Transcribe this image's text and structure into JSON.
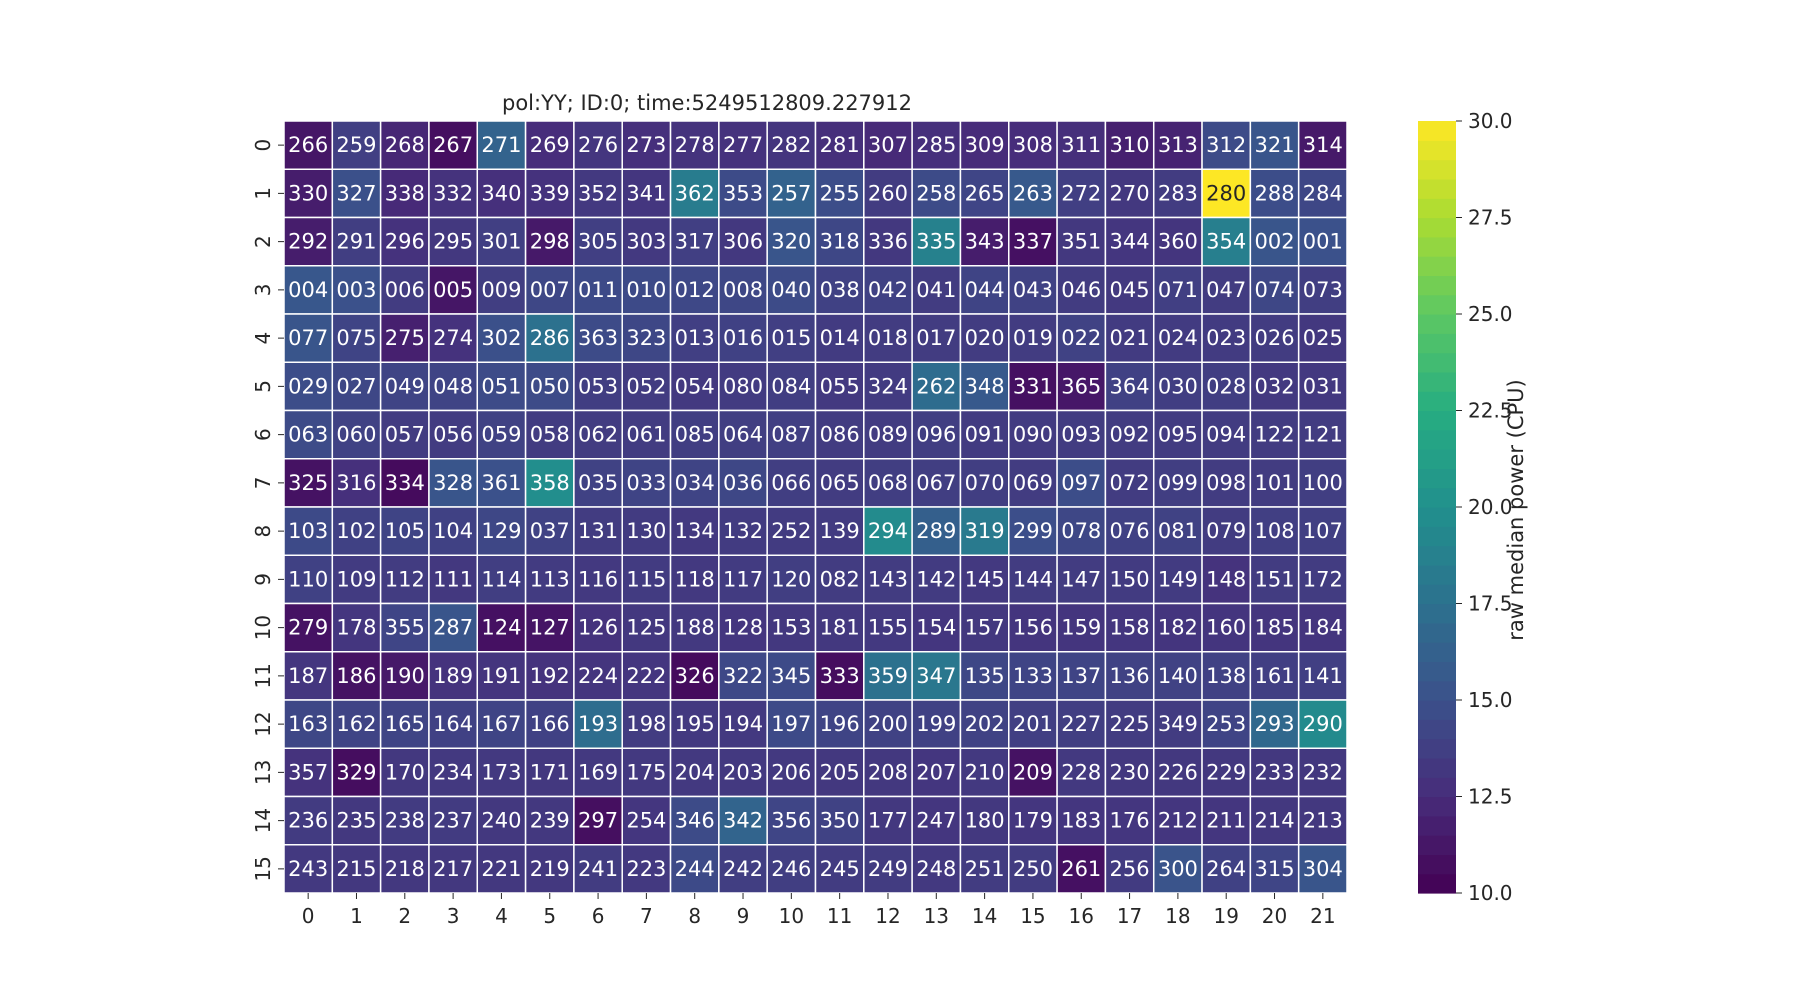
{
  "chart_data": {
    "type": "heatmap",
    "title": "pol:YY; ID:0; time:5249512809.227912",
    "x_tick_labels": [
      "0",
      "1",
      "2",
      "3",
      "4",
      "5",
      "6",
      "7",
      "8",
      "9",
      "10",
      "11",
      "12",
      "13",
      "14",
      "15",
      "16",
      "17",
      "18",
      "19",
      "20",
      "21"
    ],
    "y_tick_labels": [
      "0",
      "1",
      "2",
      "3",
      "4",
      "5",
      "6",
      "7",
      "8",
      "9",
      "10",
      "11",
      "12",
      "13",
      "14",
      "15"
    ],
    "annotations": [
      [
        "266",
        "259",
        "268",
        "267",
        "271",
        "269",
        "276",
        "273",
        "278",
        "277",
        "282",
        "281",
        "307",
        "285",
        "309",
        "308",
        "311",
        "310",
        "313",
        "312",
        "321",
        "314"
      ],
      [
        "330",
        "327",
        "338",
        "332",
        "340",
        "339",
        "352",
        "341",
        "362",
        "353",
        "257",
        "255",
        "260",
        "258",
        "265",
        "263",
        "272",
        "270",
        "283",
        "280",
        "288",
        "284"
      ],
      [
        "292",
        "291",
        "296",
        "295",
        "301",
        "298",
        "305",
        "303",
        "317",
        "306",
        "320",
        "318",
        "336",
        "335",
        "343",
        "337",
        "351",
        "344",
        "360",
        "354",
        "002",
        "001"
      ],
      [
        "004",
        "003",
        "006",
        "005",
        "009",
        "007",
        "011",
        "010",
        "012",
        "008",
        "040",
        "038",
        "042",
        "041",
        "044",
        "043",
        "046",
        "045",
        "071",
        "047",
        "074",
        "073"
      ],
      [
        "077",
        "075",
        "275",
        "274",
        "302",
        "286",
        "363",
        "323",
        "013",
        "016",
        "015",
        "014",
        "018",
        "017",
        "020",
        "019",
        "022",
        "021",
        "024",
        "023",
        "026",
        "025"
      ],
      [
        "029",
        "027",
        "049",
        "048",
        "051",
        "050",
        "053",
        "052",
        "054",
        "080",
        "084",
        "055",
        "324",
        "262",
        "348",
        "331",
        "365",
        "364",
        "030",
        "028",
        "032",
        "031"
      ],
      [
        "063",
        "060",
        "057",
        "056",
        "059",
        "058",
        "062",
        "061",
        "085",
        "064",
        "087",
        "086",
        "089",
        "096",
        "091",
        "090",
        "093",
        "092",
        "095",
        "094",
        "122",
        "121"
      ],
      [
        "325",
        "316",
        "334",
        "328",
        "361",
        "358",
        "035",
        "033",
        "034",
        "036",
        "066",
        "065",
        "068",
        "067",
        "070",
        "069",
        "097",
        "072",
        "099",
        "098",
        "101",
        "100"
      ],
      [
        "103",
        "102",
        "105",
        "104",
        "129",
        "037",
        "131",
        "130",
        "134",
        "132",
        "252",
        "139",
        "294",
        "289",
        "319",
        "299",
        "078",
        "076",
        "081",
        "079",
        "108",
        "107"
      ],
      [
        "110",
        "109",
        "112",
        "111",
        "114",
        "113",
        "116",
        "115",
        "118",
        "117",
        "120",
        "082",
        "143",
        "142",
        "145",
        "144",
        "147",
        "150",
        "149",
        "148",
        "151",
        "172"
      ],
      [
        "279",
        "178",
        "355",
        "287",
        "124",
        "127",
        "126",
        "125",
        "188",
        "128",
        "153",
        "181",
        "155",
        "154",
        "157",
        "156",
        "159",
        "158",
        "182",
        "160",
        "185",
        "184"
      ],
      [
        "187",
        "186",
        "190",
        "189",
        "191",
        "192",
        "224",
        "222",
        "326",
        "322",
        "345",
        "333",
        "359",
        "347",
        "135",
        "133",
        "137",
        "136",
        "140",
        "138",
        "161",
        "141"
      ],
      [
        "163",
        "162",
        "165",
        "164",
        "167",
        "166",
        "193",
        "198",
        "195",
        "194",
        "197",
        "196",
        "200",
        "199",
        "202",
        "201",
        "227",
        "225",
        "349",
        "253",
        "293",
        "290"
      ],
      [
        "357",
        "329",
        "170",
        "234",
        "173",
        "171",
        "169",
        "175",
        "204",
        "203",
        "206",
        "205",
        "208",
        "207",
        "210",
        "209",
        "228",
        "230",
        "226",
        "229",
        "233",
        "232"
      ],
      [
        "236",
        "235",
        "238",
        "237",
        "240",
        "239",
        "297",
        "254",
        "346",
        "342",
        "356",
        "350",
        "177",
        "247",
        "180",
        "179",
        "183",
        "176",
        "212",
        "211",
        "214",
        "213"
      ],
      [
        "243",
        "215",
        "218",
        "217",
        "221",
        "219",
        "241",
        "223",
        "244",
        "242",
        "246",
        "245",
        "249",
        "248",
        "251",
        "250",
        "261",
        "256",
        "300",
        "264",
        "315",
        "304"
      ]
    ],
    "values": [
      [
        11.2,
        13.8,
        12.2,
        10.8,
        16.4,
        12.6,
        13.2,
        12.8,
        13.0,
        12.9,
        13.1,
        12.7,
        12.4,
        12.8,
        12.5,
        12.6,
        12.7,
        11.8,
        12.0,
        14.6,
        15.3,
        11.4
      ],
      [
        11.6,
        14.9,
        12.4,
        13.0,
        12.8,
        12.9,
        13.4,
        13.2,
        18.4,
        14.6,
        16.3,
        14.7,
        13.6,
        14.6,
        14.2,
        15.6,
        13.8,
        13.3,
        13.6,
        30.0,
        14.7,
        14.3
      ],
      [
        11.6,
        13.7,
        12.9,
        13.3,
        13.8,
        11.4,
        13.8,
        13.4,
        13.8,
        13.3,
        15.3,
        14.3,
        13.3,
        18.8,
        11.6,
        10.9,
        13.3,
        13.2,
        13.1,
        18.6,
        15.3,
        15.0
      ],
      [
        15.5,
        15.0,
        13.6,
        11.2,
        13.7,
        14.3,
        14.5,
        14.5,
        14.4,
        14.3,
        14.6,
        13.9,
        13.9,
        13.6,
        14.1,
        14.0,
        13.6,
        13.4,
        13.8,
        13.6,
        14.3,
        13.7
      ],
      [
        15.3,
        14.1,
        11.8,
        12.9,
        14.9,
        17.5,
        14.6,
        14.3,
        13.8,
        13.9,
        13.8,
        13.5,
        13.6,
        13.6,
        13.6,
        13.6,
        14.0,
        13.5,
        13.5,
        13.5,
        13.6,
        13.3
      ],
      [
        14.7,
        14.3,
        14.1,
        14.1,
        14.6,
        14.6,
        13.7,
        13.6,
        13.4,
        13.5,
        13.7,
        13.4,
        13.5,
        17.1,
        15.6,
        10.9,
        11.3,
        13.9,
        13.7,
        13.7,
        13.4,
        13.4
      ],
      [
        14.6,
        14.0,
        13.6,
        13.6,
        14.0,
        13.6,
        13.6,
        13.6,
        13.7,
        13.7,
        13.8,
        13.6,
        13.6,
        13.7,
        13.5,
        13.5,
        13.6,
        13.6,
        13.6,
        13.6,
        13.6,
        13.6
      ],
      [
        11.0,
        12.8,
        10.6,
        15.3,
        15.0,
        19.8,
        14.0,
        14.1,
        14.1,
        14.3,
        13.7,
        13.6,
        13.7,
        13.7,
        13.7,
        13.6,
        14.7,
        13.6,
        13.7,
        13.6,
        13.6,
        13.7
      ],
      [
        14.5,
        13.9,
        14.1,
        13.9,
        14.3,
        14.0,
        13.6,
        13.5,
        13.4,
        13.5,
        13.5,
        13.5,
        19.6,
        16.1,
        18.2,
        14.8,
        14.3,
        13.9,
        14.0,
        13.6,
        13.8,
        13.8
      ],
      [
        13.9,
        13.5,
        13.6,
        13.3,
        13.7,
        13.5,
        13.4,
        13.5,
        13.4,
        13.5,
        13.7,
        13.6,
        13.6,
        13.5,
        13.4,
        13.6,
        13.6,
        13.5,
        13.5,
        13.0,
        13.6,
        13.6
      ],
      [
        11.0,
        13.2,
        14.2,
        15.3,
        10.9,
        11.1,
        13.0,
        13.3,
        13.4,
        13.2,
        13.3,
        13.3,
        13.4,
        13.2,
        13.3,
        13.1,
        13.1,
        13.2,
        13.1,
        13.1,
        13.1,
        13.1
      ],
      [
        13.2,
        11.0,
        11.4,
        13.0,
        13.1,
        13.0,
        13.1,
        13.2,
        10.6,
        14.4,
        14.5,
        10.7,
        17.5,
        18.0,
        14.3,
        14.1,
        14.1,
        14.0,
        14.0,
        13.9,
        13.8,
        13.8
      ],
      [
        14.3,
        14.1,
        14.1,
        13.9,
        14.1,
        13.9,
        17.2,
        13.6,
        13.4,
        13.4,
        14.5,
        14.1,
        14.0,
        13.9,
        14.0,
        13.8,
        13.7,
        13.6,
        13.6,
        14.1,
        16.8,
        19.5
      ],
      [
        13.0,
        10.7,
        13.3,
        13.4,
        13.4,
        13.3,
        13.4,
        13.4,
        13.4,
        13.4,
        13.4,
        13.3,
        13.3,
        13.2,
        13.4,
        11.0,
        13.4,
        13.3,
        13.3,
        13.3,
        13.3,
        13.3
      ],
      [
        13.5,
        13.3,
        13.5,
        13.5,
        13.3,
        13.3,
        10.8,
        13.2,
        14.6,
        16.5,
        14.2,
        14.0,
        13.3,
        13.2,
        13.3,
        13.2,
        13.2,
        13.2,
        13.2,
        13.2,
        13.3,
        13.3
      ],
      [
        13.4,
        13.3,
        13.3,
        13.3,
        13.3,
        13.3,
        13.6,
        13.4,
        14.5,
        13.7,
        13.7,
        13.6,
        13.6,
        13.4,
        13.6,
        13.6,
        10.9,
        13.5,
        15.2,
        13.9,
        14.2,
        15.3
      ]
    ],
    "colorbar": {
      "label": "raw median power (CPU)",
      "range": [
        10.0,
        30.0
      ],
      "tick_labels": [
        "10.0",
        "12.5",
        "15.0",
        "17.5",
        "20.0",
        "22.5",
        "25.0",
        "27.5",
        "30.0"
      ],
      "tick_values": [
        10.0,
        12.5,
        15.0,
        17.5,
        20.0,
        22.5,
        25.0,
        27.5,
        30.0
      ],
      "colormap": "viridis"
    },
    "grid": false
  }
}
